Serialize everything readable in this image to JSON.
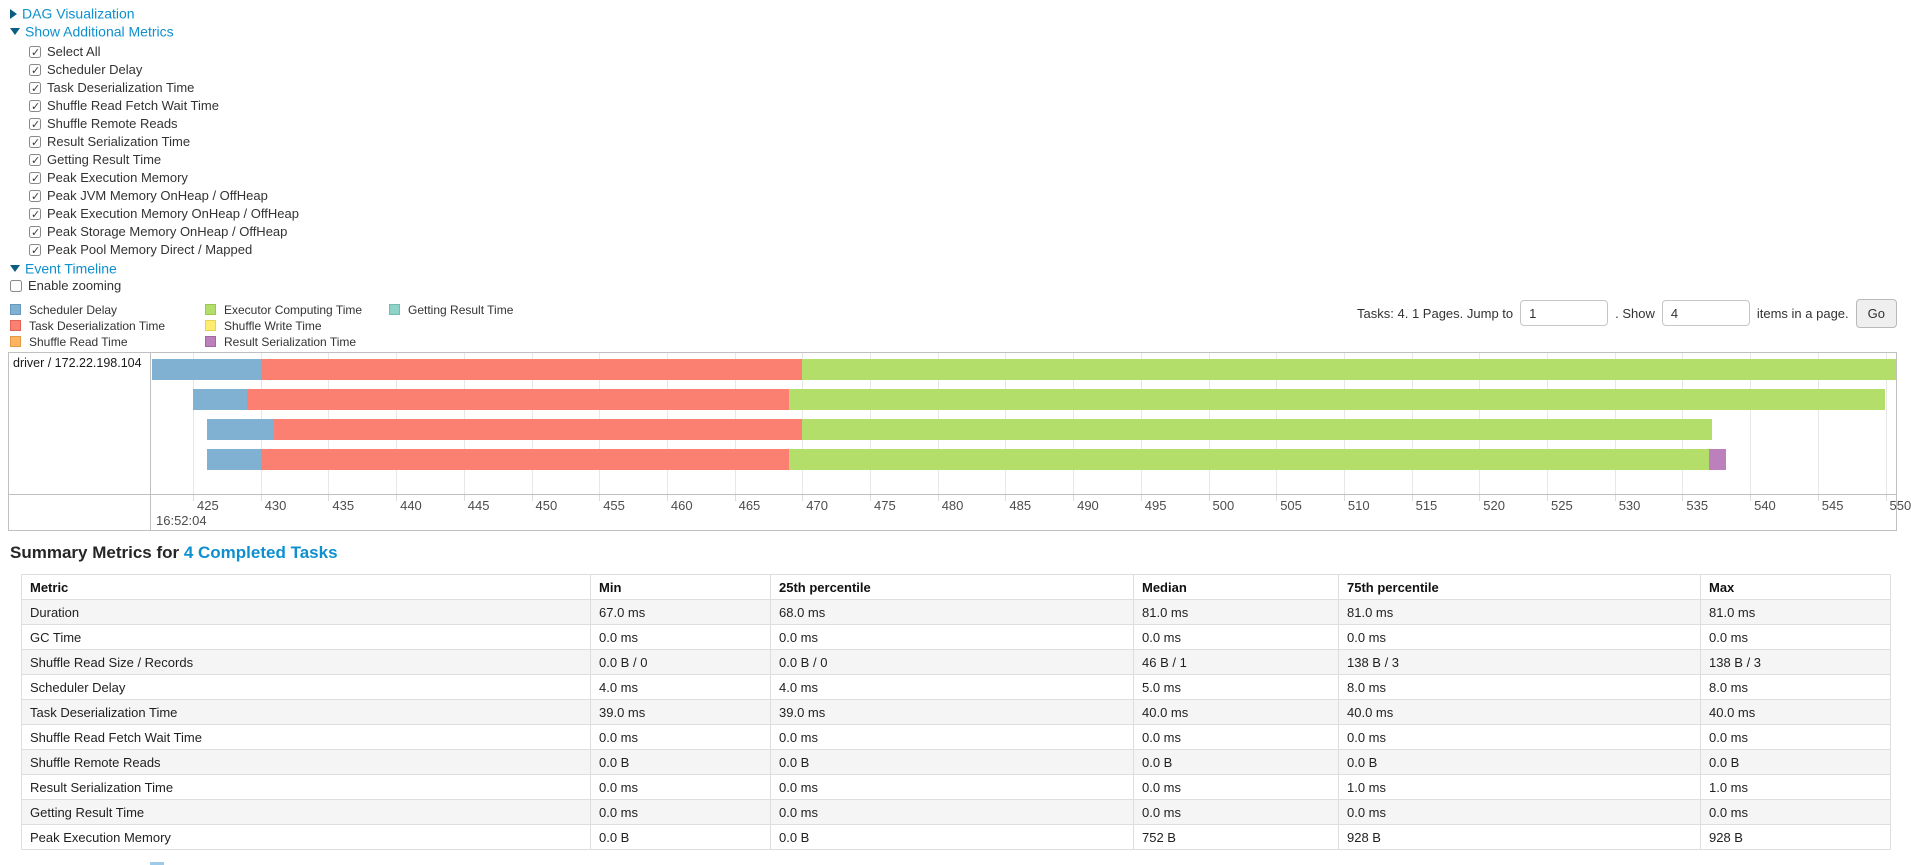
{
  "colors": {
    "link": "#0e90cf",
    "scheduler_delay": "#80B1D3",
    "task_deserialization": "#FB8072",
    "shuffle_read": "#FDB462",
    "executor_computing": "#B3DE69",
    "shuffle_write": "#FFED6F",
    "result_serialization": "#BC80BD",
    "getting_result": "#8DD3C7"
  },
  "toggles": {
    "dag": "DAG Visualization",
    "additional_metrics": "Show Additional Metrics",
    "event_timeline": "Event Timeline"
  },
  "metrics_checkboxes": [
    "Select All",
    "Scheduler Delay",
    "Task Deserialization Time",
    "Shuffle Read Fetch Wait Time",
    "Shuffle Remote Reads",
    "Result Serialization Time",
    "Getting Result Time",
    "Peak Execution Memory",
    "Peak JVM Memory OnHeap / OffHeap",
    "Peak Execution Memory OnHeap / OffHeap",
    "Peak Storage Memory OnHeap / OffHeap",
    "Peak Pool Memory Direct / Mapped"
  ],
  "enable_zooming": {
    "label": "Enable zooming",
    "checked": false
  },
  "legend": {
    "columns": [
      [
        {
          "label": "Scheduler Delay",
          "color": "#80B1D3",
          "border": "#6898BD"
        },
        {
          "label": "Task Deserialization Time",
          "color": "#FB8072",
          "border": "#E06456"
        },
        {
          "label": "Shuffle Read Time",
          "color": "#FDB462",
          "border": "#E39A44"
        }
      ],
      [
        {
          "label": "Executor Computing Time",
          "color": "#B3DE69",
          "border": "#99C84D"
        },
        {
          "label": "Shuffle Write Time",
          "color": "#FFED6F",
          "border": "#E5D354"
        },
        {
          "label": "Result Serialization Time",
          "color": "#BC80BD",
          "border": "#A365A4"
        }
      ],
      [
        {
          "label": "Getting Result Time",
          "color": "#8DD3C7",
          "border": "#72BCAF"
        }
      ]
    ]
  },
  "pagination": {
    "tasks_text": "Tasks: 4. 1 Pages. Jump to",
    "jump_value": "1",
    "mid_text": ". Show",
    "show_value": "4",
    "suffix_text": "items in a page.",
    "go_label": "Go"
  },
  "chart_data": {
    "type": "timeline",
    "row_label": "driver / 172.22.198.104",
    "x_axis": {
      "tick_values": [
        425,
        430,
        435,
        440,
        445,
        450,
        455,
        460,
        465,
        470,
        475,
        480,
        485,
        490,
        495,
        500,
        505,
        510,
        515,
        520,
        525,
        530,
        535,
        540,
        545,
        550
      ],
      "tick_step_ms": 5,
      "start_time_label": "16:52:04",
      "visible_range_ms": [
        421.9,
        551.3
      ]
    },
    "series_colors": {
      "Scheduler Delay": "#80B1D3",
      "Task Deserialization Time": "#FB8072",
      "Executor Computing Time": "#B3DE69",
      "Result Serialization Time": "#BC80BD"
    },
    "tasks": [
      {
        "segments": [
          {
            "name": "Scheduler Delay",
            "start": 421.8,
            "end": 430.0
          },
          {
            "name": "Task Deserialization Time",
            "start": 430.0,
            "end": 470.0
          },
          {
            "name": "Executor Computing Time",
            "start": 470.0,
            "end": 551.5
          }
        ]
      },
      {
        "segments": [
          {
            "name": "Scheduler Delay",
            "start": 425.0,
            "end": 429.0
          },
          {
            "name": "Task Deserialization Time",
            "start": 429.0,
            "end": 469.0
          },
          {
            "name": "Executor Computing Time",
            "start": 469.0,
            "end": 550.0
          }
        ]
      },
      {
        "segments": [
          {
            "name": "Scheduler Delay",
            "start": 426.0,
            "end": 431.0
          },
          {
            "name": "Task Deserialization Time",
            "start": 431.0,
            "end": 470.0
          },
          {
            "name": "Executor Computing Time",
            "start": 470.0,
            "end": 537.2
          }
        ]
      },
      {
        "segments": [
          {
            "name": "Scheduler Delay",
            "start": 426.0,
            "end": 430.0
          },
          {
            "name": "Task Deserialization Time",
            "start": 430.0,
            "end": 469.0
          },
          {
            "name": "Executor Computing Time",
            "start": 469.0,
            "end": 537.0
          },
          {
            "name": "Result Serialization Time",
            "start": 537.0,
            "end": 538.2
          }
        ]
      }
    ]
  },
  "summary": {
    "title_prefix": "Summary Metrics for ",
    "title_link": "4 Completed Tasks",
    "table": {
      "headers": [
        "Metric",
        "Min",
        "25th percentile",
        "Median",
        "75th percentile",
        "Max"
      ],
      "rows": [
        [
          "Duration",
          "67.0 ms",
          "68.0 ms",
          "81.0 ms",
          "81.0 ms",
          "81.0 ms"
        ],
        [
          "GC Time",
          "0.0 ms",
          "0.0 ms",
          "0.0 ms",
          "0.0 ms",
          "0.0 ms"
        ],
        [
          "Shuffle Read Size / Records",
          "0.0 B / 0",
          "0.0 B / 0",
          "46 B / 1",
          "138 B / 3",
          "138 B / 3"
        ],
        [
          "Scheduler Delay",
          "4.0 ms",
          "4.0 ms",
          "5.0 ms",
          "8.0 ms",
          "8.0 ms"
        ],
        [
          "Task Deserialization Time",
          "39.0 ms",
          "39.0 ms",
          "40.0 ms",
          "40.0 ms",
          "40.0 ms"
        ],
        [
          "Shuffle Read Fetch Wait Time",
          "0.0 ms",
          "0.0 ms",
          "0.0 ms",
          "0.0 ms",
          "0.0 ms"
        ],
        [
          "Shuffle Remote Reads",
          "0.0 B",
          "0.0 B",
          "0.0 B",
          "0.0 B",
          "0.0 B"
        ],
        [
          "Result Serialization Time",
          "0.0 ms",
          "0.0 ms",
          "0.0 ms",
          "1.0 ms",
          "1.0 ms"
        ],
        [
          "Getting Result Time",
          "0.0 ms",
          "0.0 ms",
          "0.0 ms",
          "0.0 ms",
          "0.0 ms"
        ],
        [
          "Peak Execution Memory",
          "0.0 B",
          "0.0 B",
          "752 B",
          "928 B",
          "928 B"
        ]
      ]
    }
  }
}
